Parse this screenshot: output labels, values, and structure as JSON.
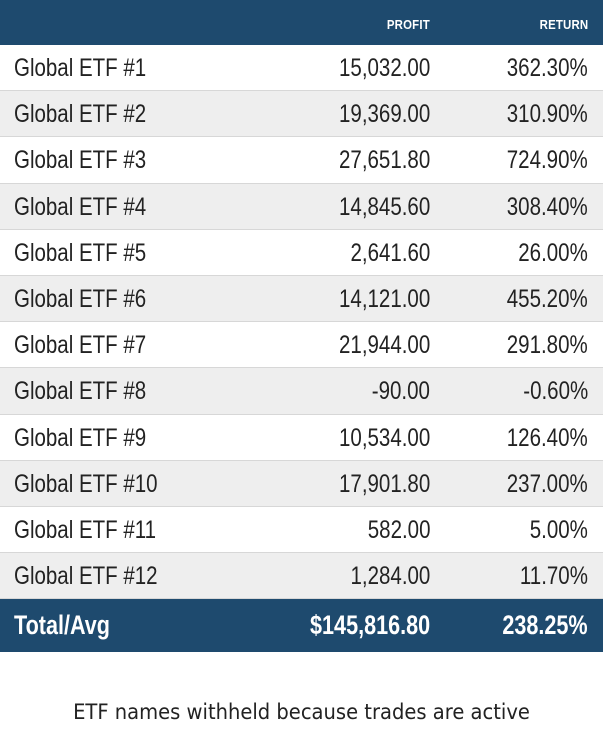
{
  "table": {
    "columns": {
      "name": "",
      "profit": "PROFIT",
      "return": "RETURN"
    },
    "rows": [
      {
        "name": "Global ETF #1",
        "profit": "15,032.00",
        "return": "362.30%"
      },
      {
        "name": "Global ETF #2",
        "profit": "19,369.00",
        "return": "310.90%"
      },
      {
        "name": "Global ETF #3",
        "profit": "27,651.80",
        "return": "724.90%"
      },
      {
        "name": "Global ETF #4",
        "profit": "14,845.60",
        "return": "308.40%"
      },
      {
        "name": "Global ETF #5",
        "profit": "2,641.60",
        "return": "26.00%"
      },
      {
        "name": "Global ETF #6",
        "profit": "14,121.00",
        "return": "455.20%"
      },
      {
        "name": "Global ETF #7",
        "profit": "21,944.00",
        "return": "291.80%"
      },
      {
        "name": "Global ETF #8",
        "profit": "-90.00",
        "return": "-0.60%"
      },
      {
        "name": "Global ETF #9",
        "profit": "10,534.00",
        "return": "126.40%"
      },
      {
        "name": "Global ETF #10",
        "profit": "17,901.80",
        "return": "237.00%"
      },
      {
        "name": "Global ETF #11",
        "profit": "582.00",
        "return": "5.00%"
      },
      {
        "name": "Global ETF #12",
        "profit": "1,284.00",
        "return": "11.70%"
      }
    ],
    "total": {
      "name": "Total/Avg",
      "profit": "$145,816.80",
      "return": "238.25%"
    }
  },
  "footnote": "ETF names withheld because trades are active",
  "colors": {
    "header_bg": "#1e4a6e",
    "alt_row_bg": "#eeeeee",
    "text": "#222222"
  }
}
